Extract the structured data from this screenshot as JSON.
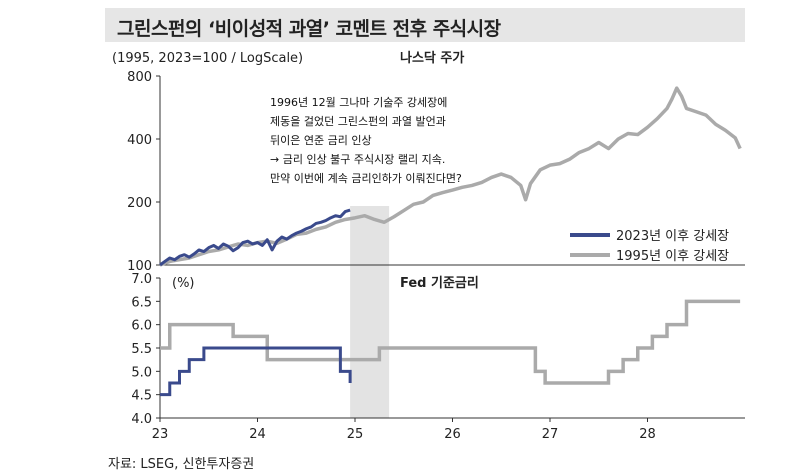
{
  "title": "그린스펀의 ‘비이성적 과열’ 코멘트 전후 주식시장",
  "source": "자료: LSEG, 신한투자증권",
  "chart_data": [
    {
      "type": "line",
      "title": "나스닥 주가",
      "ylabel": "(1995, 2023=100 / LogScale)",
      "yscale": "log",
      "ylim": [
        100,
        800
      ],
      "yticks": [
        100,
        200,
        400,
        800
      ],
      "xlim": [
        23,
        29
      ],
      "annotation": [
        "1996년 12월 그나마 기술주 강세장에",
        "제동을 걸었던 그린스펀의 과열 발언과",
        "뒤이은 연준 금리 인상",
        "→ 금리 인상 불구 주식시장 랠리 지속.",
        "   만약 이번에 계속 금리인하가 이뤄진다면?"
      ],
      "highlight_band": [
        24.95,
        25.35
      ],
      "series": [
        {
          "name": "2023년 이후 강세장",
          "color": "#3a4a8c",
          "x": [
            23.0,
            23.05,
            23.1,
            23.15,
            23.2,
            23.25,
            23.3,
            23.35,
            23.4,
            23.45,
            23.5,
            23.55,
            23.6,
            23.65,
            23.7,
            23.75,
            23.8,
            23.85,
            23.9,
            23.95,
            24.0,
            24.05,
            24.1,
            24.15,
            24.2,
            24.25,
            24.3,
            24.35,
            24.4,
            24.45,
            24.5,
            24.55,
            24.6,
            24.65,
            24.7,
            24.75,
            24.8,
            24.85,
            24.9,
            24.95
          ],
          "values": [
            100,
            104,
            108,
            106,
            110,
            112,
            109,
            113,
            118,
            116,
            121,
            124,
            120,
            126,
            123,
            117,
            121,
            128,
            130,
            126,
            128,
            124,
            132,
            118,
            130,
            136,
            133,
            138,
            142,
            145,
            149,
            152,
            158,
            160,
            163,
            168,
            172,
            170,
            180,
            183
          ]
        },
        {
          "name": "1995년 이후 강세장",
          "color": "#aaaaaa",
          "x": [
            23.0,
            23.1,
            23.2,
            23.3,
            23.4,
            23.5,
            23.6,
            23.7,
            23.8,
            23.9,
            24.0,
            24.1,
            24.2,
            24.3,
            24.4,
            24.5,
            24.6,
            24.7,
            24.8,
            24.9,
            25.0,
            25.1,
            25.2,
            25.3,
            25.4,
            25.5,
            25.6,
            25.7,
            25.8,
            25.9,
            26.0,
            26.1,
            26.2,
            26.3,
            26.4,
            26.5,
            26.6,
            26.7,
            26.75,
            26.8,
            26.9,
            27.0,
            27.1,
            27.2,
            27.3,
            27.4,
            27.5,
            27.6,
            27.7,
            27.8,
            27.9,
            28.0,
            28.1,
            28.2,
            28.25,
            28.3,
            28.35,
            28.4,
            28.5,
            28.6,
            28.7,
            28.8,
            28.9,
            28.95
          ],
          "values": [
            100,
            104,
            106,
            108,
            112,
            116,
            118,
            122,
            126,
            124,
            128,
            130,
            127,
            133,
            140,
            142,
            148,
            152,
            160,
            165,
            168,
            172,
            165,
            160,
            170,
            182,
            195,
            200,
            215,
            222,
            228,
            235,
            240,
            248,
            262,
            272,
            262,
            240,
            205,
            245,
            285,
            300,
            305,
            320,
            345,
            360,
            385,
            360,
            400,
            425,
            420,
            455,
            500,
            560,
            620,
            700,
            640,
            560,
            540,
            520,
            470,
            440,
            405,
            360
          ]
        }
      ]
    },
    {
      "type": "line",
      "title": "Fed 기준금리",
      "ylabel": "(%)",
      "ylim": [
        4.0,
        7.0
      ],
      "yticks": [
        "4.0",
        "4.5",
        "5.0",
        "5.5",
        "6.0",
        "6.5",
        "7.0"
      ],
      "xlim": [
        23,
        29
      ],
      "xticks": [
        "23",
        "24",
        "25",
        "26",
        "27",
        "28"
      ],
      "series": [
        {
          "name": "",
          "color": "#3a4a8c",
          "step": true,
          "x": [
            23.0,
            23.1,
            23.2,
            23.3,
            23.45,
            23.65,
            24.75,
            24.85,
            24.95
          ],
          "values": [
            4.5,
            4.75,
            5.0,
            5.25,
            5.5,
            5.5,
            5.5,
            5.0,
            4.75
          ]
        },
        {
          "name": "",
          "color": "#aaaaaa",
          "step": true,
          "x": [
            23.0,
            23.1,
            23.55,
            23.75,
            24.0,
            24.1,
            25.25,
            26.75,
            26.85,
            26.95,
            27.45,
            27.6,
            27.75,
            27.9,
            28.05,
            28.2,
            28.4,
            28.95
          ],
          "values": [
            5.5,
            6.0,
            6.0,
            5.75,
            5.75,
            5.25,
            5.5,
            5.5,
            5.0,
            4.75,
            4.75,
            5.0,
            5.25,
            5.5,
            5.75,
            6.0,
            6.5,
            6.5
          ]
        }
      ]
    }
  ]
}
